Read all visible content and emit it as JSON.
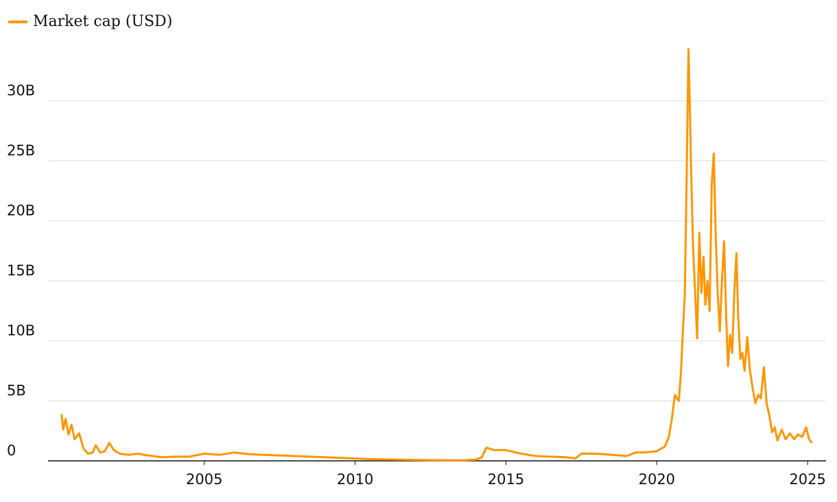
{
  "chart_data": {
    "type": "line",
    "x": [
      2000.27,
      2000.32,
      2000.4,
      2000.5,
      2000.6,
      2000.7,
      2000.85,
      2001.0,
      2001.15,
      2001.3,
      2001.4,
      2001.55,
      2001.7,
      2001.85,
      2002.0,
      2002.2,
      2002.5,
      2002.8,
      2003.0,
      2003.3,
      2003.6,
      2004.0,
      2004.5,
      2005.0,
      2005.5,
      2006.0,
      2006.5,
      2007.0,
      2007.5,
      2008.0,
      2008.5,
      2009.0,
      2009.5,
      2010.0,
      2010.5,
      2011.0,
      2011.5,
      2012.0,
      2012.5,
      2013.0,
      2013.5,
      2014.0,
      2014.2,
      2014.35,
      2014.6,
      2015.0,
      2015.5,
      2016.0,
      2016.5,
      2017.0,
      2017.3,
      2017.5,
      2018.0,
      2018.5,
      2019.0,
      2019.3,
      2019.6,
      2020.0,
      2020.27,
      2020.4,
      2020.5,
      2020.6,
      2020.73,
      2020.8,
      2020.86,
      2020.93,
      2020.98,
      2021.05,
      2021.09,
      2021.14,
      2021.2,
      2021.27,
      2021.34,
      2021.41,
      2021.48,
      2021.55,
      2021.61,
      2021.68,
      2021.75,
      2021.82,
      2021.89,
      2021.95,
      2022.02,
      2022.09,
      2022.16,
      2022.23,
      2022.3,
      2022.36,
      2022.43,
      2022.5,
      2022.57,
      2022.64,
      2022.7,
      2022.77,
      2022.84,
      2022.91,
      2023.0,
      2023.09,
      2023.18,
      2023.27,
      2023.36,
      2023.45,
      2023.55,
      2023.64,
      2023.73,
      2023.82,
      2023.91,
      2024.0,
      2024.14,
      2024.27,
      2024.41,
      2024.55,
      2024.68,
      2024.82,
      2024.95,
      2025.05,
      2025.14
    ],
    "series": [
      {
        "name": "Market cap (USD)",
        "color": "#ff9500",
        "values": [
          3.9,
          2.6,
          3.5,
          2.2,
          3.0,
          1.8,
          2.3,
          1.0,
          0.6,
          0.7,
          1.3,
          0.7,
          0.8,
          1.5,
          0.9,
          0.6,
          0.5,
          0.6,
          0.5,
          0.4,
          0.3,
          0.35,
          0.35,
          0.6,
          0.5,
          0.7,
          0.55,
          0.5,
          0.45,
          0.4,
          0.35,
          0.3,
          0.25,
          0.2,
          0.15,
          0.12,
          0.1,
          0.08,
          0.06,
          0.05,
          0.04,
          0.1,
          0.3,
          1.1,
          0.9,
          0.9,
          0.6,
          0.4,
          0.35,
          0.3,
          0.2,
          0.6,
          0.6,
          0.5,
          0.4,
          0.7,
          0.7,
          0.8,
          1.2,
          2.0,
          3.5,
          5.5,
          5.0,
          7.3,
          10.5,
          14,
          22,
          34.3,
          30,
          24,
          18,
          14,
          10.2,
          19,
          14,
          17,
          13,
          15,
          12.5,
          23,
          25.6,
          19,
          14,
          10.8,
          15,
          18.3,
          12,
          7.9,
          10.5,
          9,
          14,
          17.3,
          12,
          8.5,
          9,
          7.5,
          10.3,
          7.5,
          6.0,
          4.8,
          5.5,
          5.2,
          7.8,
          4.8,
          3.8,
          2.4,
          2.8,
          1.7,
          2.6,
          1.8,
          2.3,
          1.8,
          2.2,
          2.0,
          2.8,
          1.8,
          1.5
        ]
      }
    ],
    "xlim": [
      1999.82,
      2025.61
    ],
    "xticks": [
      2005,
      2010,
      2015,
      2020,
      2025
    ],
    "ylim": [
      0,
      35
    ],
    "yticks": [
      0,
      {
        "value": 5,
        "label": "5B"
      },
      {
        "value": 10,
        "label": "10B"
      },
      {
        "value": 15,
        "label": "15B"
      },
      {
        "value": 20,
        "label": "20B"
      },
      {
        "value": 25,
        "label": "25B"
      },
      {
        "value": 30,
        "label": "30B"
      }
    ],
    "grid": true
  }
}
